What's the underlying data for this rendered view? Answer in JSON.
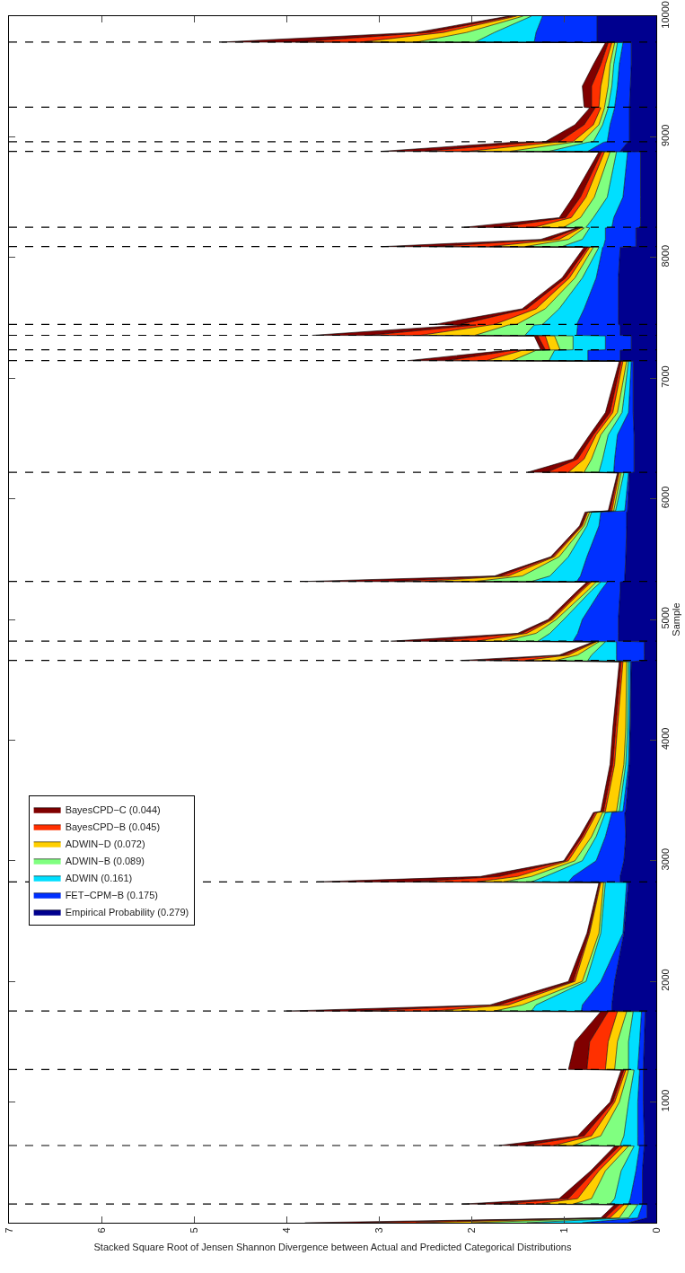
{
  "chart_data": {
    "type": "area",
    "stacked": true,
    "orientation": "horizontal",
    "xlabel": "Stacked Square Root of Jensen Shannon Divergence between Actual and Predicted Categorical Distributions",
    "ylabel": "Sample",
    "x": [
      0,
      40,
      150,
      155,
      200,
      430,
      635,
      640,
      720,
      1000,
      1265,
      1270,
      1500,
      1750,
      1755,
      1805,
      2000,
      2400,
      2820,
      2825,
      2870,
      3000,
      3200,
      3400,
      3410,
      3800,
      4100,
      4650,
      4660,
      4705,
      4815,
      4820,
      4885,
      5000,
      5240,
      5310,
      5315,
      5360,
      5520,
      5775,
      5890,
      5900,
      6215,
      6220,
      6330,
      6530,
      6715,
      7140,
      7145,
      7230,
      7235,
      7350,
      7355,
      7440,
      7445,
      7575,
      7830,
      8085,
      8090,
      8150,
      8245,
      8250,
      8330,
      8500,
      8875,
      8880,
      8955,
      8960,
      9100,
      9240,
      9245,
      9420,
      9600,
      9780,
      9785,
      9865,
      10000
    ],
    "series": [
      {
        "name": "Empirical Probability (0.279)",
        "color": "#00008f",
        "values": [
          0.3,
          0.1,
          0.1,
          0.15,
          0.15,
          0.15,
          0.13,
          0.13,
          0.13,
          0.14,
          0.14,
          0.14,
          0.13,
          0.12,
          0.48,
          0.48,
          0.45,
          0.35,
          0.3,
          0.39,
          0.39,
          0.35,
          0.33,
          0.34,
          0.33,
          0.29,
          0.28,
          0.27,
          0.13,
          0.13,
          0.13,
          0.41,
          0.41,
          0.41,
          0.39,
          0.39,
          0.34,
          0.34,
          0.33,
          0.32,
          0.32,
          0.31,
          0.29,
          0.24,
          0.24,
          0.24,
          0.25,
          0.25,
          0.39,
          0.39,
          0.27,
          0.27,
          0.39,
          0.39,
          0.41,
          0.41,
          0.41,
          0.39,
          0.22,
          0.22,
          0.22,
          0.17,
          0.17,
          0.17,
          0.17,
          0.39,
          0.31,
          0.29,
          0.29,
          0.29,
          0.29,
          0.28,
          0.27,
          0.27,
          0.64,
          0.64,
          0.64
        ]
      },
      {
        "name": "FET−CPM−B (0.175)",
        "color": "#0030ff",
        "values": [
          0.5,
          0.1,
          0.05,
          0.15,
          0.13,
          0.07,
          0.05,
          0.07,
          0.07,
          0.06,
          0.04,
          0.06,
          0.05,
          0.04,
          0.33,
          0.32,
          0.15,
          0.01,
          0.02,
          0.56,
          0.51,
          0.3,
          0.22,
          0.14,
          0.03,
          0.01,
          0.01,
          0.01,
          0.3,
          0.3,
          0.3,
          0.49,
          0.44,
          0.39,
          0.21,
          0.14,
          0.52,
          0.48,
          0.42,
          0.3,
          0.28,
          0.03,
          0.01,
          0.22,
          0.21,
          0.18,
          0.05,
          0.02,
          0.35,
          0.35,
          0.28,
          0.28,
          0.47,
          0.46,
          0.45,
          0.37,
          0.24,
          0.19,
          0.35,
          0.33,
          0.33,
          0.31,
          0.29,
          0.19,
          0.14,
          0.35,
          0.26,
          0.24,
          0.21,
          0.16,
          0.16,
          0.14,
          0.13,
          0.09,
          0.68,
          0.66,
          0.59
        ]
      },
      {
        "name": "ADWIN (0.161)",
        "color": "#00dfff",
        "values": [
          0.6,
          0.1,
          0.05,
          0.2,
          0.17,
          0.16,
          0.06,
          0.19,
          0.15,
          0.1,
          0.06,
          0.1,
          0.12,
          0.09,
          0.54,
          0.5,
          0.16,
          0.24,
          0.23,
          0.4,
          0.3,
          0.15,
          0.1,
          0.07,
          0.04,
          0.03,
          0.02,
          0.02,
          0.31,
          0.27,
          0.12,
          0.38,
          0.3,
          0.2,
          0.1,
          0.07,
          0.49,
          0.33,
          0.2,
          0.13,
          0.1,
          0.1,
          0.05,
          0.16,
          0.13,
          0.1,
          0.07,
          0.03,
          0.42,
          0.36,
          0.35,
          0.35,
          0.56,
          0.47,
          0.37,
          0.27,
          0.15,
          0.04,
          0.45,
          0.25,
          0.17,
          0.28,
          0.22,
          0.17,
          0.12,
          0.42,
          0.17,
          0.15,
          0.08,
          0.07,
          0.07,
          0.06,
          0.06,
          0.06,
          0.64,
          0.45,
          0.12
        ]
      },
      {
        "name": "ADWIN−B (0.089)",
        "color": "#80ff80",
        "values": [
          0.6,
          0.1,
          0.1,
          0.4,
          0.25,
          0.17,
          0.06,
          0.51,
          0.25,
          0.1,
          0.06,
          0.15,
          0.12,
          0.07,
          0.4,
          0.15,
          0.04,
          0.02,
          0.02,
          0.3,
          0.15,
          0.08,
          0.05,
          0.03,
          0.03,
          0.02,
          0.02,
          0.02,
          0.35,
          0.15,
          0.07,
          0.37,
          0.15,
          0.08,
          0.04,
          0.05,
          0.61,
          0.3,
          0.1,
          0.03,
          0.02,
          0.02,
          0.03,
          0.16,
          0.12,
          0.08,
          0.05,
          0.02,
          0.4,
          0.2,
          0.14,
          0.2,
          0.54,
          0.28,
          0.28,
          0.15,
          0.08,
          0.06,
          0.4,
          0.15,
          0.06,
          0.24,
          0.14,
          0.14,
          0.07,
          0.42,
          0.16,
          0.12,
          0.04,
          0.04,
          0.04,
          0.04,
          0.04,
          0.03,
          0.63,
          0.3,
          0.09
        ]
      },
      {
        "name": "ADWIN−D (0.072)",
        "color": "#ffcf00",
        "values": [
          0.6,
          0.1,
          0.05,
          0.4,
          0.15,
          0.07,
          0.06,
          0.21,
          0.1,
          0.05,
          0.03,
          0.1,
          0.1,
          0.1,
          0.65,
          0.15,
          0.08,
          0.1,
          0.03,
          0.29,
          0.15,
          0.07,
          0.08,
          0.06,
          0.12,
          0.1,
          0.09,
          0.04,
          0.33,
          0.1,
          0.03,
          0.29,
          0.1,
          0.04,
          0.06,
          0.05,
          0.54,
          0.15,
          0.05,
          0.02,
          0.02,
          0.02,
          0.02,
          0.17,
          0.08,
          0.05,
          0.05,
          0.04,
          0.28,
          0.15,
          0.11,
          0.1,
          0.59,
          0.2,
          0.24,
          0.1,
          0.06,
          0.04,
          0.38,
          0.1,
          0.04,
          0.32,
          0.1,
          0.09,
          0.06,
          0.45,
          0.19,
          0.1,
          0.06,
          0.04,
          0.06,
          0.08,
          0.05,
          0.03,
          0.61,
          0.25,
          0.07
        ]
      },
      {
        "name": "BayesCPD−B (0.045)",
        "color": "#ff3000",
        "values": [
          0.6,
          0.05,
          0.05,
          0.4,
          0.1,
          0.05,
          0.04,
          0.31,
          0.08,
          0.02,
          0.02,
          0.2,
          0.2,
          0.1,
          0.8,
          0.1,
          0.02,
          0.01,
          0.01,
          0.66,
          0.2,
          0.03,
          0.02,
          0.02,
          0.02,
          0.02,
          0.02,
          0.02,
          0.38,
          0.05,
          0.01,
          0.46,
          0.05,
          0.02,
          0.02,
          0.02,
          0.33,
          0.08,
          0.02,
          0.01,
          0.01,
          0.02,
          0.01,
          0.23,
          0.07,
          0.03,
          0.03,
          0.02,
          0.42,
          0.1,
          0.05,
          0.08,
          0.55,
          0.15,
          0.37,
          0.1,
          0.04,
          0.02,
          0.6,
          0.1,
          0.02,
          0.38,
          0.06,
          0.06,
          0.03,
          0.47,
          0.23,
          0.15,
          0.1,
          0.06,
          0.08,
          0.1,
          0.05,
          0.04,
          0.7,
          0.15,
          0.04
        ]
      },
      {
        "name": "BayesCPD−C (0.044)",
        "color": "#800000",
        "values": [
          0.6,
          0.05,
          0.05,
          0.4,
          0.1,
          0.04,
          0.05,
          0.28,
          0.07,
          0.03,
          0.03,
          0.2,
          0.16,
          0.08,
          0.8,
          0.1,
          0.05,
          0.02,
          0.01,
          1.07,
          0.2,
          0.02,
          0.03,
          0.02,
          0.03,
          0.03,
          0.03,
          0.02,
          0.32,
          0.05,
          0.02,
          0.47,
          0.05,
          0.03,
          0.03,
          0.03,
          0.97,
          0.07,
          0.02,
          0.02,
          0.02,
          0.02,
          0.01,
          0.21,
          0.05,
          0.04,
          0.05,
          0.02,
          0.43,
          0.07,
          0.05,
          0.04,
          0.62,
          0.15,
          0.28,
          0.05,
          0.04,
          0.04,
          0.57,
          0.1,
          0.02,
          0.38,
          0.07,
          0.08,
          0.03,
          0.47,
          0.23,
          0.15,
          0.1,
          0.06,
          0.08,
          0.1,
          0.08,
          0.03,
          0.8,
          0.15,
          0.05
        ]
      }
    ],
    "xlim": [
      7,
      0
    ],
    "xticks": [
      7,
      6,
      5,
      4,
      3,
      2,
      1,
      0
    ],
    "ylim": [
      0,
      10000
    ],
    "yticks": [
      1000,
      2000,
      3000,
      4000,
      5000,
      6000,
      7000,
      8000,
      9000,
      10000
    ],
    "ref_lines": [
      {
        "axis": "y",
        "value": 155,
        "color": "#000000",
        "line_style": "dashed"
      },
      {
        "axis": "y",
        "value": 640,
        "color": "#000000",
        "line_style": "dashed"
      },
      {
        "axis": "y",
        "value": 1270,
        "color": "#000000",
        "line_style": "dashed"
      },
      {
        "axis": "y",
        "value": 1755,
        "color": "#000000",
        "line_style": "dashed"
      },
      {
        "axis": "y",
        "value": 2825,
        "color": "#000000",
        "line_style": "dashed"
      },
      {
        "axis": "y",
        "value": 4660,
        "color": "#000000",
        "line_style": "dashed"
      },
      {
        "axis": "y",
        "value": 4820,
        "color": "#000000",
        "line_style": "dashed"
      },
      {
        "axis": "y",
        "value": 5315,
        "color": "#000000",
        "line_style": "dashed"
      },
      {
        "axis": "y",
        "value": 6220,
        "color": "#000000",
        "line_style": "dashed"
      },
      {
        "axis": "y",
        "value": 7145,
        "color": "#000000",
        "line_style": "dashed"
      },
      {
        "axis": "y",
        "value": 7235,
        "color": "#000000",
        "line_style": "dashed"
      },
      {
        "axis": "y",
        "value": 7355,
        "color": "#000000",
        "line_style": "dashed"
      },
      {
        "axis": "y",
        "value": 7445,
        "color": "#000000",
        "line_style": "dashed"
      },
      {
        "axis": "y",
        "value": 8090,
        "color": "#000000",
        "line_style": "dashed"
      },
      {
        "axis": "y",
        "value": 8250,
        "color": "#000000",
        "line_style": "dashed"
      },
      {
        "axis": "y",
        "value": 8880,
        "color": "#000000",
        "line_style": "dashed"
      },
      {
        "axis": "y",
        "value": 8960,
        "color": "#000000",
        "line_style": "dashed"
      },
      {
        "axis": "y",
        "value": 9245,
        "color": "#000000",
        "line_style": "dashed"
      },
      {
        "axis": "y",
        "value": 9785,
        "color": "#000000",
        "line_style": "dashed"
      }
    ],
    "grid": false,
    "legend": "left"
  }
}
